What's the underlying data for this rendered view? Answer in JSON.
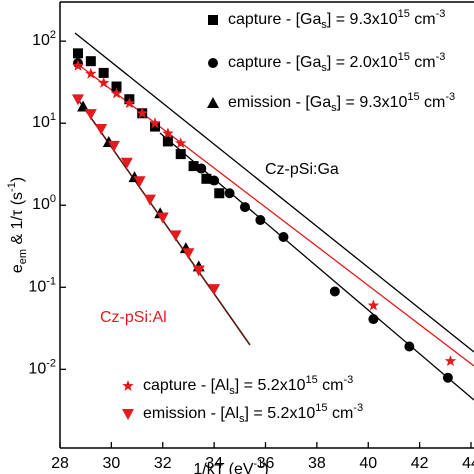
{
  "chart_data": {
    "type": "scatter",
    "xlabel": "1/kT (eV^{-1})",
    "ylabel": "e_{em} & 1/τ (s^{-1})",
    "xlim": [
      28,
      44
    ],
    "xticks": [
      28,
      30,
      32,
      34,
      36,
      38,
      40,
      42,
      44
    ],
    "ylim": [
      0.0011,
      300
    ],
    "log_y": true,
    "yticks": [
      {
        "value": 0.01,
        "label": "10^{-2}"
      },
      {
        "value": 0.1,
        "label": "10^{-1}"
      },
      {
        "value": 1,
        "label": "10^{0}"
      },
      {
        "value": 10,
        "label": "10^{1}"
      },
      {
        "value": 100,
        "label": "10^{2}"
      }
    ],
    "annotations": [
      {
        "text": "Cz-pSi:Ga",
        "color": "#000000"
      },
      {
        "text": "Cz-pSi:Al",
        "color": "#e41a1c"
      }
    ],
    "series": [
      {
        "name": "capture - [Ga_{s}] = 9.3x10^{15} cm^{-3}",
        "marker": "square",
        "color": "#000000",
        "x": [
          28.7,
          29.2,
          29.7,
          30.2,
          30.7,
          31.2,
          31.7,
          32.2,
          32.7,
          33.2,
          33.7,
          34.2
        ],
        "values": [
          71,
          57,
          41,
          28,
          19.6,
          13.2,
          9.1,
          6.0,
          4.2,
          3.0,
          2.1,
          1.4
        ]
      },
      {
        "name": "capture - [Ga_{s}] = 2.0x10^{15} cm^{-3}",
        "marker": "circle",
        "color": "#000000",
        "x": [
          28.7,
          33.5,
          34.0,
          34.6,
          35.2,
          35.8,
          36.7,
          38.7,
          40.2,
          41.6,
          43.1
        ],
        "values": [
          54,
          2.8,
          2.0,
          1.4,
          0.95,
          0.66,
          0.41,
          0.089,
          0.041,
          0.019,
          0.0079
        ]
      },
      {
        "name": "emission - [Ga_{s}] = 9.3x10^{15} cm^{-3}",
        "marker": "triangle",
        "color": "#000000",
        "x": [
          28.9,
          29.9,
          30.9,
          31.9,
          32.9,
          33.4
        ],
        "values": [
          16,
          5.9,
          2.2,
          0.8,
          0.3,
          0.18
        ]
      },
      {
        "name": "capture - [Al_{s}] = 5.2x10^{15} cm^{-3}",
        "marker": "star",
        "color": "#e41a1c",
        "x": [
          28.7,
          29.2,
          29.7,
          30.2,
          30.7,
          31.2,
          31.7,
          32.2,
          32.7,
          40.2,
          43.2
        ],
        "values": [
          50,
          40,
          31,
          23,
          17.5,
          13.2,
          10,
          7.5,
          5.7,
          0.06,
          0.0126
        ]
      },
      {
        "name": "emission - [Al_{s}] = 5.2x10^{15} cm^{-3}",
        "marker": "triangle-down",
        "color": "#e41a1c",
        "x": [
          28.7,
          29.2,
          29.6,
          30.1,
          30.6,
          31.1,
          31.5,
          32.0,
          32.5,
          33.0,
          33.4,
          34.0
        ],
        "values": [
          19.5,
          12.9,
          8.5,
          5.3,
          3.3,
          1.96,
          1.17,
          0.71,
          0.43,
          0.26,
          0.16,
          0.095
        ]
      }
    ]
  }
}
